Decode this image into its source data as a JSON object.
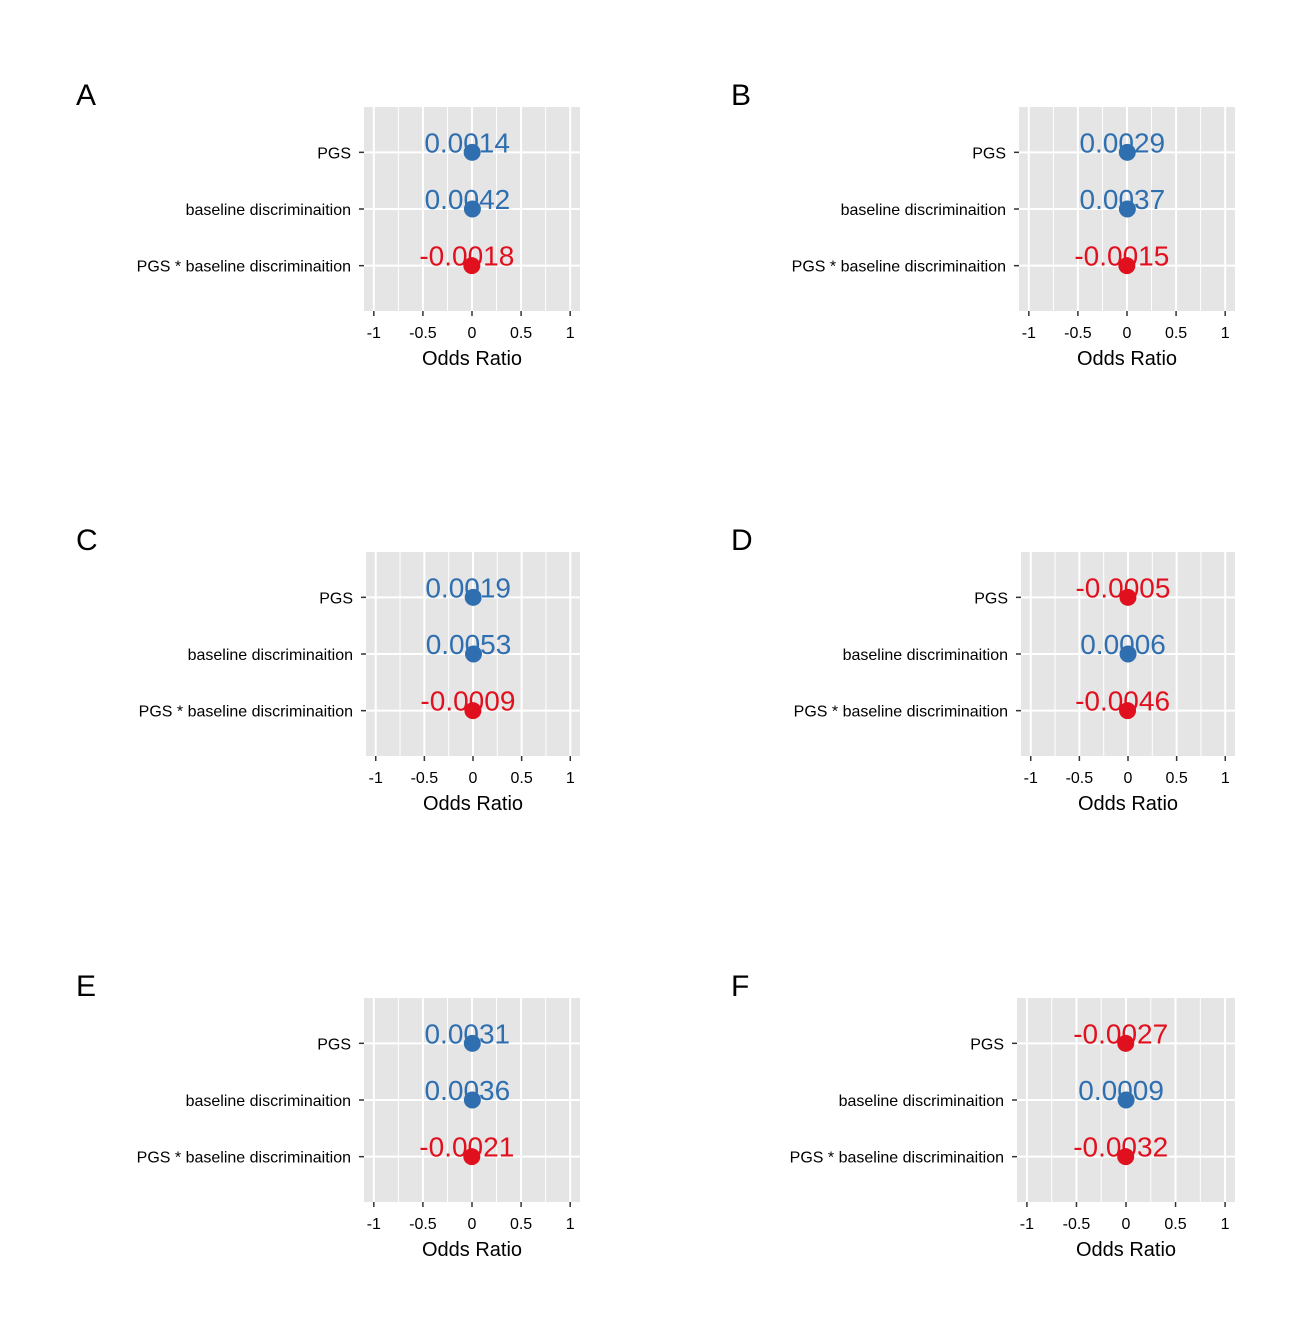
{
  "chart_data": [
    {
      "panel": "A",
      "type": "scatter",
      "categories": [
        "PGS",
        "baseline discriminaition",
        "PGS * baseline discriminaition"
      ],
      "values": [
        0.0014,
        0.0042,
        -0.0018
      ],
      "value_labels": [
        "0.0014",
        "0.0042",
        "-0.0018"
      ],
      "xlabel": "Odds Ratio",
      "xlim": [
        -1.1,
        1.1
      ],
      "xticks": [
        "-1",
        "-0.5",
        "0",
        "0.5",
        "1"
      ]
    },
    {
      "panel": "B",
      "type": "scatter",
      "categories": [
        "PGS",
        "baseline discriminaition",
        "PGS * baseline discriminaition"
      ],
      "values": [
        0.0029,
        0.0037,
        -0.0015
      ],
      "value_labels": [
        "0.0029",
        "0.0037",
        "-0.0015"
      ],
      "xlabel": "Odds Ratio",
      "xlim": [
        -1.1,
        1.1
      ],
      "xticks": [
        "-1",
        "-0.5",
        "0",
        "0.5",
        "1"
      ]
    },
    {
      "panel": "C",
      "type": "scatter",
      "categories": [
        "PGS",
        "baseline discriminaition",
        "PGS * baseline discriminaition"
      ],
      "values": [
        0.0019,
        0.0053,
        -0.0009
      ],
      "value_labels": [
        "0.0019",
        "0.0053",
        "-0.0009"
      ],
      "xlabel": "Odds Ratio",
      "xlim": [
        -1.1,
        1.1
      ],
      "xticks": [
        "-1",
        "-0.5",
        "0",
        "0.5",
        "1"
      ]
    },
    {
      "panel": "D",
      "type": "scatter",
      "categories": [
        "PGS",
        "baseline discriminaition",
        "PGS * baseline discriminaition"
      ],
      "values": [
        -0.0005,
        0.0006,
        -0.0046
      ],
      "value_labels": [
        "-0.0005",
        "0.0006",
        "-0.0046"
      ],
      "xlabel": "Odds Ratio",
      "xlim": [
        -1.1,
        1.1
      ],
      "xticks": [
        "-1",
        "-0.5",
        "0",
        "0.5",
        "1"
      ]
    },
    {
      "panel": "E",
      "type": "scatter",
      "categories": [
        "PGS",
        "baseline discriminaition",
        "PGS * baseline discriminaition"
      ],
      "values": [
        0.0031,
        0.0036,
        -0.0021
      ],
      "value_labels": [
        "0.0031",
        "0.0036",
        "-0.0021"
      ],
      "xlabel": "Odds Ratio",
      "xlim": [
        -1.1,
        1.1
      ],
      "xticks": [
        "-1",
        "-0.5",
        "0",
        "0.5",
        "1"
      ]
    },
    {
      "panel": "F",
      "type": "scatter",
      "categories": [
        "PGS",
        "baseline discriminaition",
        "PGS * baseline discriminaition"
      ],
      "values": [
        -0.0027,
        0.0009,
        -0.0032
      ],
      "value_labels": [
        "-0.0027",
        "0.0009",
        "-0.0032"
      ],
      "xlabel": "Odds Ratio",
      "xlim": [
        -1.1,
        1.1
      ],
      "xticks": [
        "-1",
        "-0.5",
        "0",
        "0.5",
        "1"
      ]
    }
  ],
  "colors": {
    "positive": "#2f6fb0",
    "negative": "#e0101e",
    "panel_background": "#e5e5e5",
    "grid": "#ffffff"
  },
  "grid": true
}
